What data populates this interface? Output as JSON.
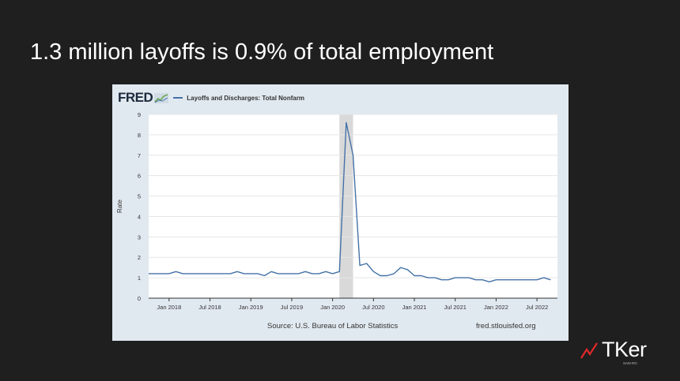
{
  "slide": {
    "title": "1.3 million layoffs is 0.9% of total employment"
  },
  "fred": {
    "logo_text": "FRED",
    "source": "Source: U.S. Bureau of Labor Statistics",
    "site": "fred.stlouisfed.org"
  },
  "brand": {
    "name": "TKer",
    "subtitle": "SAM RO"
  },
  "colors": {
    "background": "#1f1f1f",
    "chart_panel": "#e1e9f0",
    "line": "#4572a7",
    "recession": "#d9d9d9",
    "brand_accent": "#e0292b"
  },
  "chart_data": {
    "type": "line",
    "title": "",
    "xlabel": "",
    "ylabel": "Rate",
    "ylim": [
      0,
      9
    ],
    "yticks": [
      0,
      1,
      2,
      3,
      4,
      5,
      6,
      7,
      8,
      9
    ],
    "xlim": [
      "2017-10",
      "2022-10"
    ],
    "xticks": [
      "Jan 2018",
      "Jul 2018",
      "Jan 2019",
      "Jul 2019",
      "Jan 2020",
      "Jul 2020",
      "Jan 2021",
      "Jul 2021",
      "Jan 2022",
      "Jul 2022"
    ],
    "grid": true,
    "legend_position": "top",
    "recession_shading": [
      "2020-02",
      "2020-04"
    ],
    "series": [
      {
        "name": "Layoffs and Discharges: Total Nonfarm",
        "x": [
          "2017-10",
          "2017-11",
          "2017-12",
          "2018-01",
          "2018-02",
          "2018-03",
          "2018-04",
          "2018-05",
          "2018-06",
          "2018-07",
          "2018-08",
          "2018-09",
          "2018-10",
          "2018-11",
          "2018-12",
          "2019-01",
          "2019-02",
          "2019-03",
          "2019-04",
          "2019-05",
          "2019-06",
          "2019-07",
          "2019-08",
          "2019-09",
          "2019-10",
          "2019-11",
          "2019-12",
          "2020-01",
          "2020-02",
          "2020-03",
          "2020-04",
          "2020-05",
          "2020-06",
          "2020-07",
          "2020-08",
          "2020-09",
          "2020-10",
          "2020-11",
          "2020-12",
          "2021-01",
          "2021-02",
          "2021-03",
          "2021-04",
          "2021-05",
          "2021-06",
          "2021-07",
          "2021-08",
          "2021-09",
          "2021-10",
          "2021-11",
          "2021-12",
          "2022-01",
          "2022-02",
          "2022-03",
          "2022-04",
          "2022-05",
          "2022-06",
          "2022-07",
          "2022-08",
          "2022-09"
        ],
        "values": [
          1.2,
          1.2,
          1.2,
          1.2,
          1.3,
          1.2,
          1.2,
          1.2,
          1.2,
          1.2,
          1.2,
          1.2,
          1.2,
          1.3,
          1.2,
          1.2,
          1.2,
          1.1,
          1.3,
          1.2,
          1.2,
          1.2,
          1.2,
          1.3,
          1.2,
          1.2,
          1.3,
          1.2,
          1.3,
          8.6,
          7.0,
          1.6,
          1.7,
          1.3,
          1.1,
          1.1,
          1.2,
          1.5,
          1.4,
          1.1,
          1.1,
          1.0,
          1.0,
          0.9,
          0.9,
          1.0,
          1.0,
          1.0,
          0.9,
          0.9,
          0.8,
          0.9,
          0.9,
          0.9,
          0.9,
          0.9,
          0.9,
          0.9,
          1.0,
          0.9
        ]
      }
    ]
  }
}
